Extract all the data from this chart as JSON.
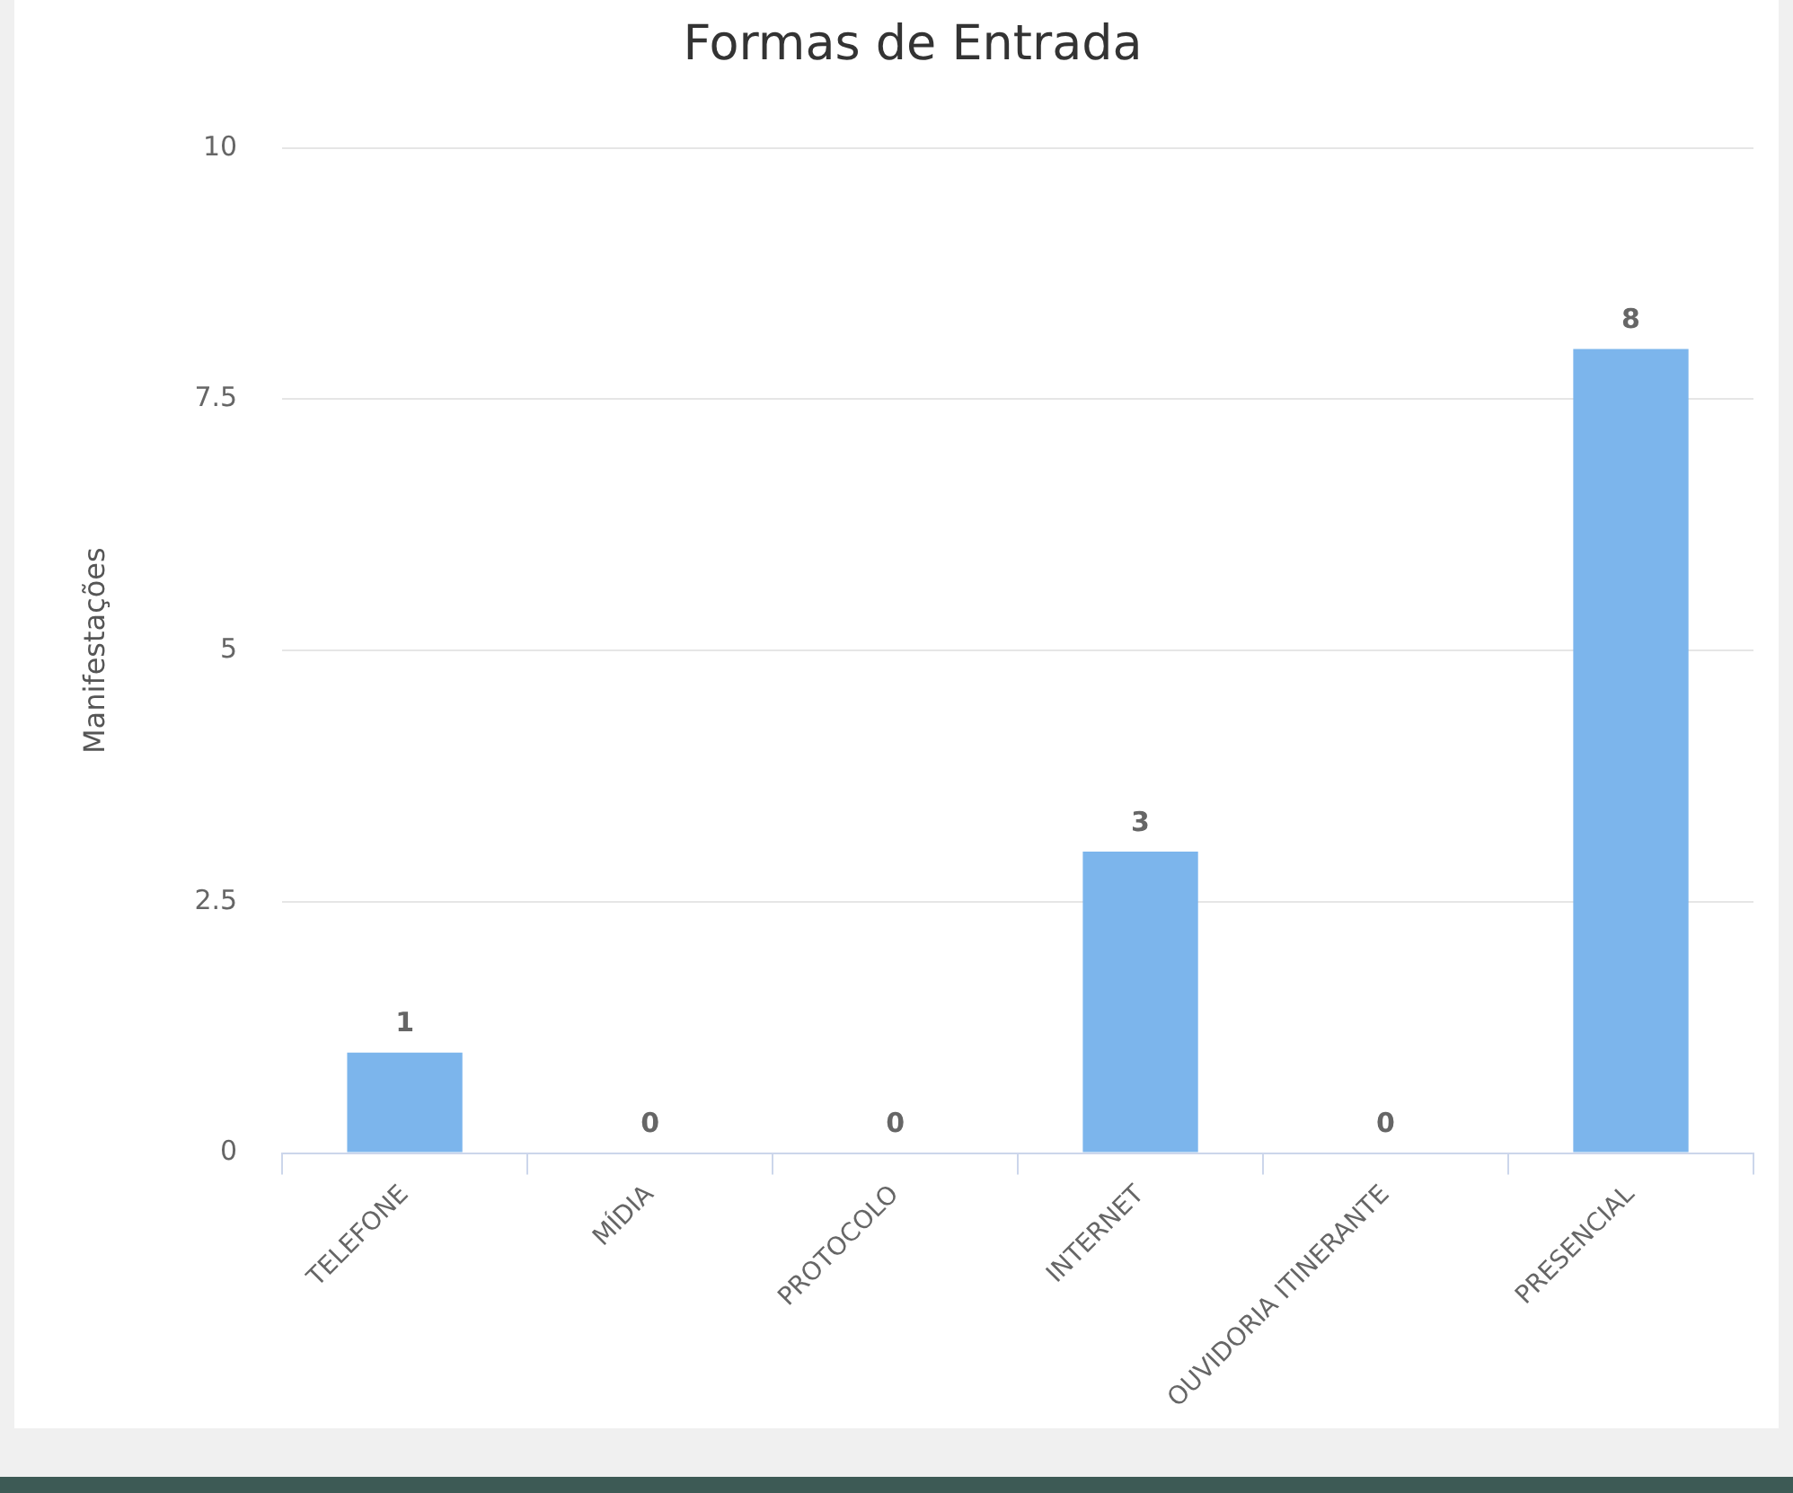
{
  "chart_data": {
    "type": "bar",
    "title": "Formas de Entrada",
    "ylabel": "Manifestações",
    "categories": [
      "TELEFONE",
      "MÍDIA",
      "PROTOCOLO",
      "INTERNET",
      "OUVIDORIA ITINERANTE",
      "PRESENCIAL"
    ],
    "values": [
      1,
      0,
      0,
      3,
      0,
      8
    ],
    "color": "#7cb5ec",
    "ylim": [
      0,
      10
    ],
    "yticks": [
      0,
      2.5,
      5,
      7.5,
      10
    ],
    "grid": "y",
    "data_labels": true,
    "legend": false
  }
}
